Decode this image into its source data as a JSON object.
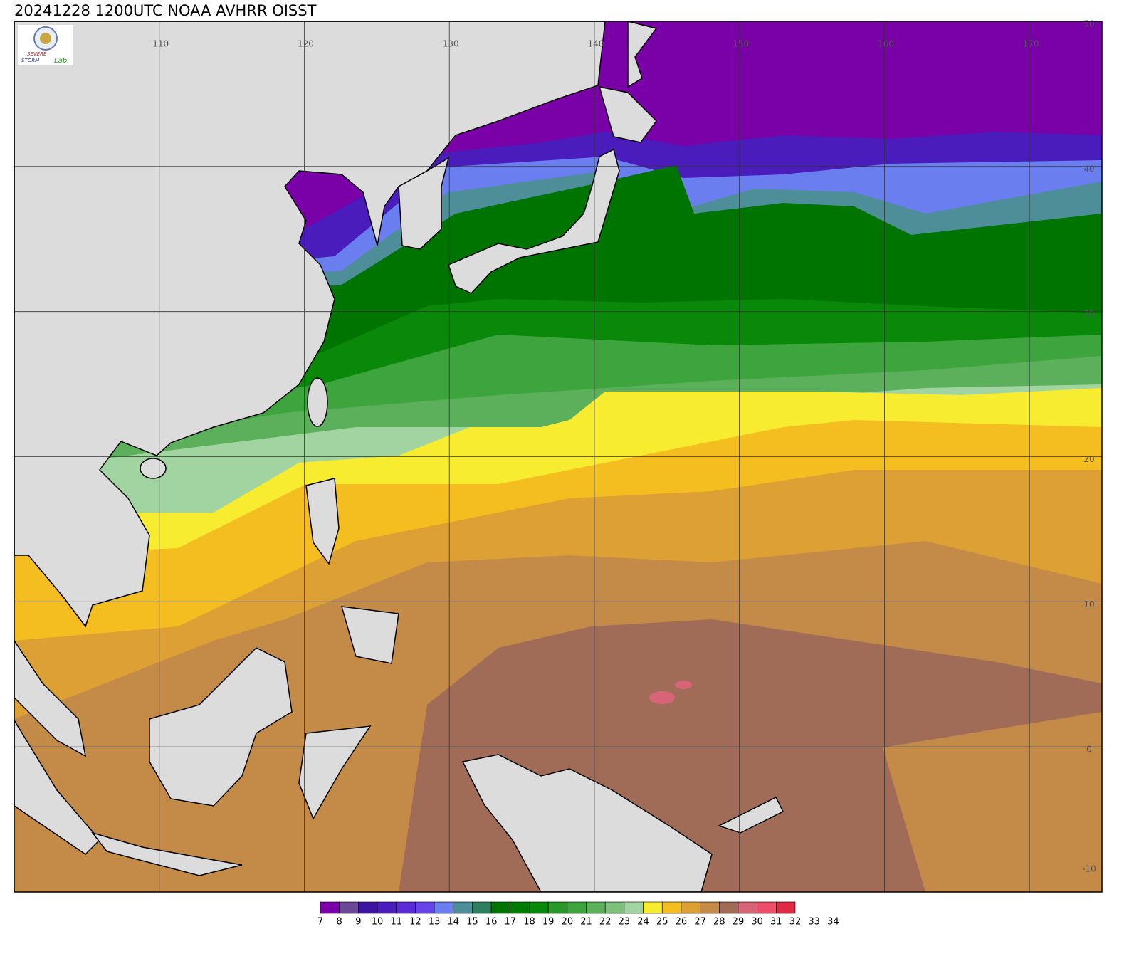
{
  "title": "20241228 1200UTC NOAA AVHRR OISST",
  "logo": {
    "line1": "SEVERE",
    "line2": "STORM",
    "line3": "Lab."
  },
  "map": {
    "lon_ticks": [
      110,
      120,
      130,
      140,
      150,
      160,
      170
    ],
    "lat_ticks": [
      50,
      40,
      30,
      20,
      10,
      0,
      -10
    ]
  },
  "colorbar": {
    "labels": [
      7,
      8,
      9,
      10,
      11,
      12,
      13,
      14,
      15,
      16,
      17,
      18,
      19,
      20,
      21,
      22,
      23,
      24,
      25,
      26,
      27,
      28,
      29,
      30,
      31,
      32,
      33,
      34
    ],
    "colors": [
      "#7a00a8",
      "#6a4896",
      "#3c14a0",
      "#4a1cbc",
      "#5a2ad6",
      "#6644e8",
      "#6a7ef0",
      "#4e8e98",
      "#2e7e62",
      "#007400",
      "#007c00",
      "#0a880a",
      "#289828",
      "#3ea43e",
      "#5cb05c",
      "#7cc07c",
      "#a2d4a2",
      "#f8ec30",
      "#f4be20",
      "#dca034",
      "#c48a48",
      "#a06c58",
      "#d86478",
      "#ee4e6a",
      "#e02a44"
    ]
  }
}
